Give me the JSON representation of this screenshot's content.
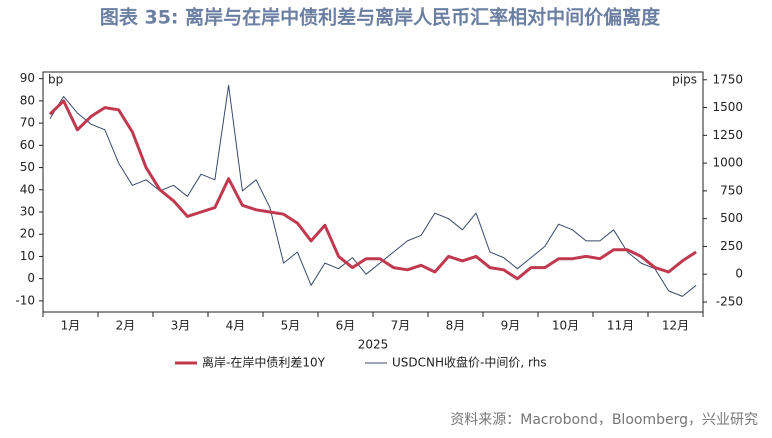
{
  "chart_data": {
    "type": "line",
    "title": "图表 35: 离岸与在岸中债利差与离岸人民币汇率相对中间价偏离度",
    "y_unit": "bp",
    "y2_unit": "pips",
    "xlabel": "2025",
    "source": "资料来源：Macrobond，Bloomberg，兴业研究",
    "categories": [
      null,
      "1月",
      null,
      null,
      null,
      "2月",
      null,
      null,
      null,
      "3月",
      null,
      null,
      null,
      "4月",
      null,
      null,
      null,
      "5月",
      null,
      null,
      null,
      "6月",
      null,
      null,
      null,
      "7月",
      null,
      null,
      null,
      "8月",
      null,
      null,
      null,
      "9月",
      null,
      null,
      null,
      "10月",
      null,
      null,
      null,
      "11月",
      null,
      null,
      null,
      "12月",
      null,
      null
    ],
    "series": [
      {
        "name": "离岸-在岸中债利差10Y",
        "color": "#c0394f",
        "width": 3,
        "values": [
          74,
          80,
          67,
          73,
          77,
          76,
          66,
          50,
          40,
          35,
          28,
          30,
          32,
          45,
          33,
          31,
          30,
          29,
          25,
          17,
          24,
          10,
          5,
          9,
          9,
          5,
          4,
          6,
          3,
          10,
          8,
          10,
          5,
          4,
          0,
          5,
          5,
          9,
          9,
          10,
          9,
          13,
          13,
          10,
          5,
          3,
          8,
          12
        ]
      },
      {
        "name": "USDCNH收盘价-中间价, rhs",
        "color": "#3b4a6b",
        "width": 1,
        "axis": "y2",
        "values": [
          1400,
          1600,
          1450,
          1350,
          1300,
          1000,
          800,
          850,
          750,
          800,
          700,
          900,
          850,
          1700,
          750,
          850,
          600,
          100,
          200,
          -100,
          100,
          50,
          150,
          0,
          100,
          200,
          300,
          350,
          550,
          500,
          400,
          550,
          200,
          150,
          50,
          150,
          250,
          450,
          400,
          300,
          300,
          400,
          200,
          100,
          50,
          -150,
          -200,
          -100
        ]
      }
    ],
    "ylim": [
      -15,
      93
    ],
    "yticks": [
      -10,
      0,
      10,
      20,
      30,
      40,
      50,
      60,
      70,
      80,
      90
    ],
    "y2lim": [
      -340,
      1820
    ],
    "y2ticks": [
      -250,
      0,
      250,
      500,
      750,
      1000,
      1250,
      1500,
      1750
    ]
  }
}
